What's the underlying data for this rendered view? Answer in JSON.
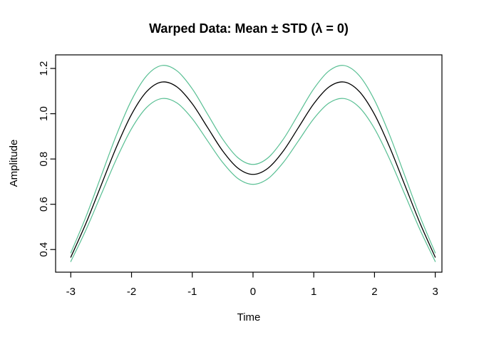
{
  "figure": {
    "background": "#ffffff",
    "plot_box_color": "#000000",
    "text_color": "#000000"
  },
  "chart_data": {
    "type": "line",
    "title": "Warped Data: Mean ± STD (λ = 0)",
    "xlabel": "Time",
    "ylabel": "Amplitude",
    "xlim": [
      -3.25,
      3.11
    ],
    "ylim": [
      0.3,
      1.26
    ],
    "x_ticks": [
      -3,
      -2,
      -1,
      0,
      1,
      2,
      3
    ],
    "x_tick_labels": [
      "-3",
      "-2",
      "-1",
      "0",
      "1",
      "2",
      "3"
    ],
    "y_ticks": [
      0.4,
      0.6,
      0.8,
      1.0,
      1.2
    ],
    "y_tick_labels": [
      "0.4",
      "0.6",
      "0.8",
      "1.0",
      "1.2"
    ],
    "grid": false,
    "legend_position": "none",
    "x": [
      -3,
      -2.75,
      -2.5,
      -2.25,
      -2,
      -1.75,
      -1.5,
      -1.25,
      -1,
      -0.75,
      -0.5,
      -0.25,
      0,
      0.25,
      0.5,
      0.75,
      1,
      1.25,
      1.5,
      1.75,
      2,
      2.25,
      2.5,
      2.75,
      3
    ],
    "series": [
      {
        "name": "mean",
        "label": "Mean",
        "color": "#000000",
        "line_width": 1.3,
        "values": [
          0.366,
          0.516,
          0.684,
          0.852,
          0.997,
          1.098,
          1.14,
          1.118,
          1.044,
          0.94,
          0.836,
          0.76,
          0.732,
          0.76,
          0.836,
          0.94,
          1.044,
          1.118,
          1.14,
          1.098,
          0.997,
          0.852,
          0.684,
          0.516,
          0.366
        ]
      },
      {
        "name": "mean-plus-std",
        "label": "Mean + STD",
        "color": "#58BF93",
        "line_width": 1.2,
        "values": [
          0.385,
          0.545,
          0.725,
          0.905,
          1.06,
          1.168,
          1.213,
          1.189,
          1.11,
          0.999,
          0.888,
          0.806,
          0.776,
          0.806,
          0.888,
          0.999,
          1.11,
          1.189,
          1.213,
          1.168,
          1.06,
          0.905,
          0.725,
          0.545,
          0.385
        ]
      },
      {
        "name": "mean-minus-std",
        "label": "Mean − STD",
        "color": "#58BF93",
        "line_width": 1.2,
        "values": [
          0.347,
          0.487,
          0.643,
          0.799,
          0.934,
          1.028,
          1.067,
          1.047,
          0.978,
          0.881,
          0.785,
          0.714,
          0.688,
          0.714,
          0.785,
          0.881,
          0.978,
          1.047,
          1.067,
          1.028,
          0.934,
          0.799,
          0.643,
          0.487,
          0.347
        ]
      }
    ]
  }
}
